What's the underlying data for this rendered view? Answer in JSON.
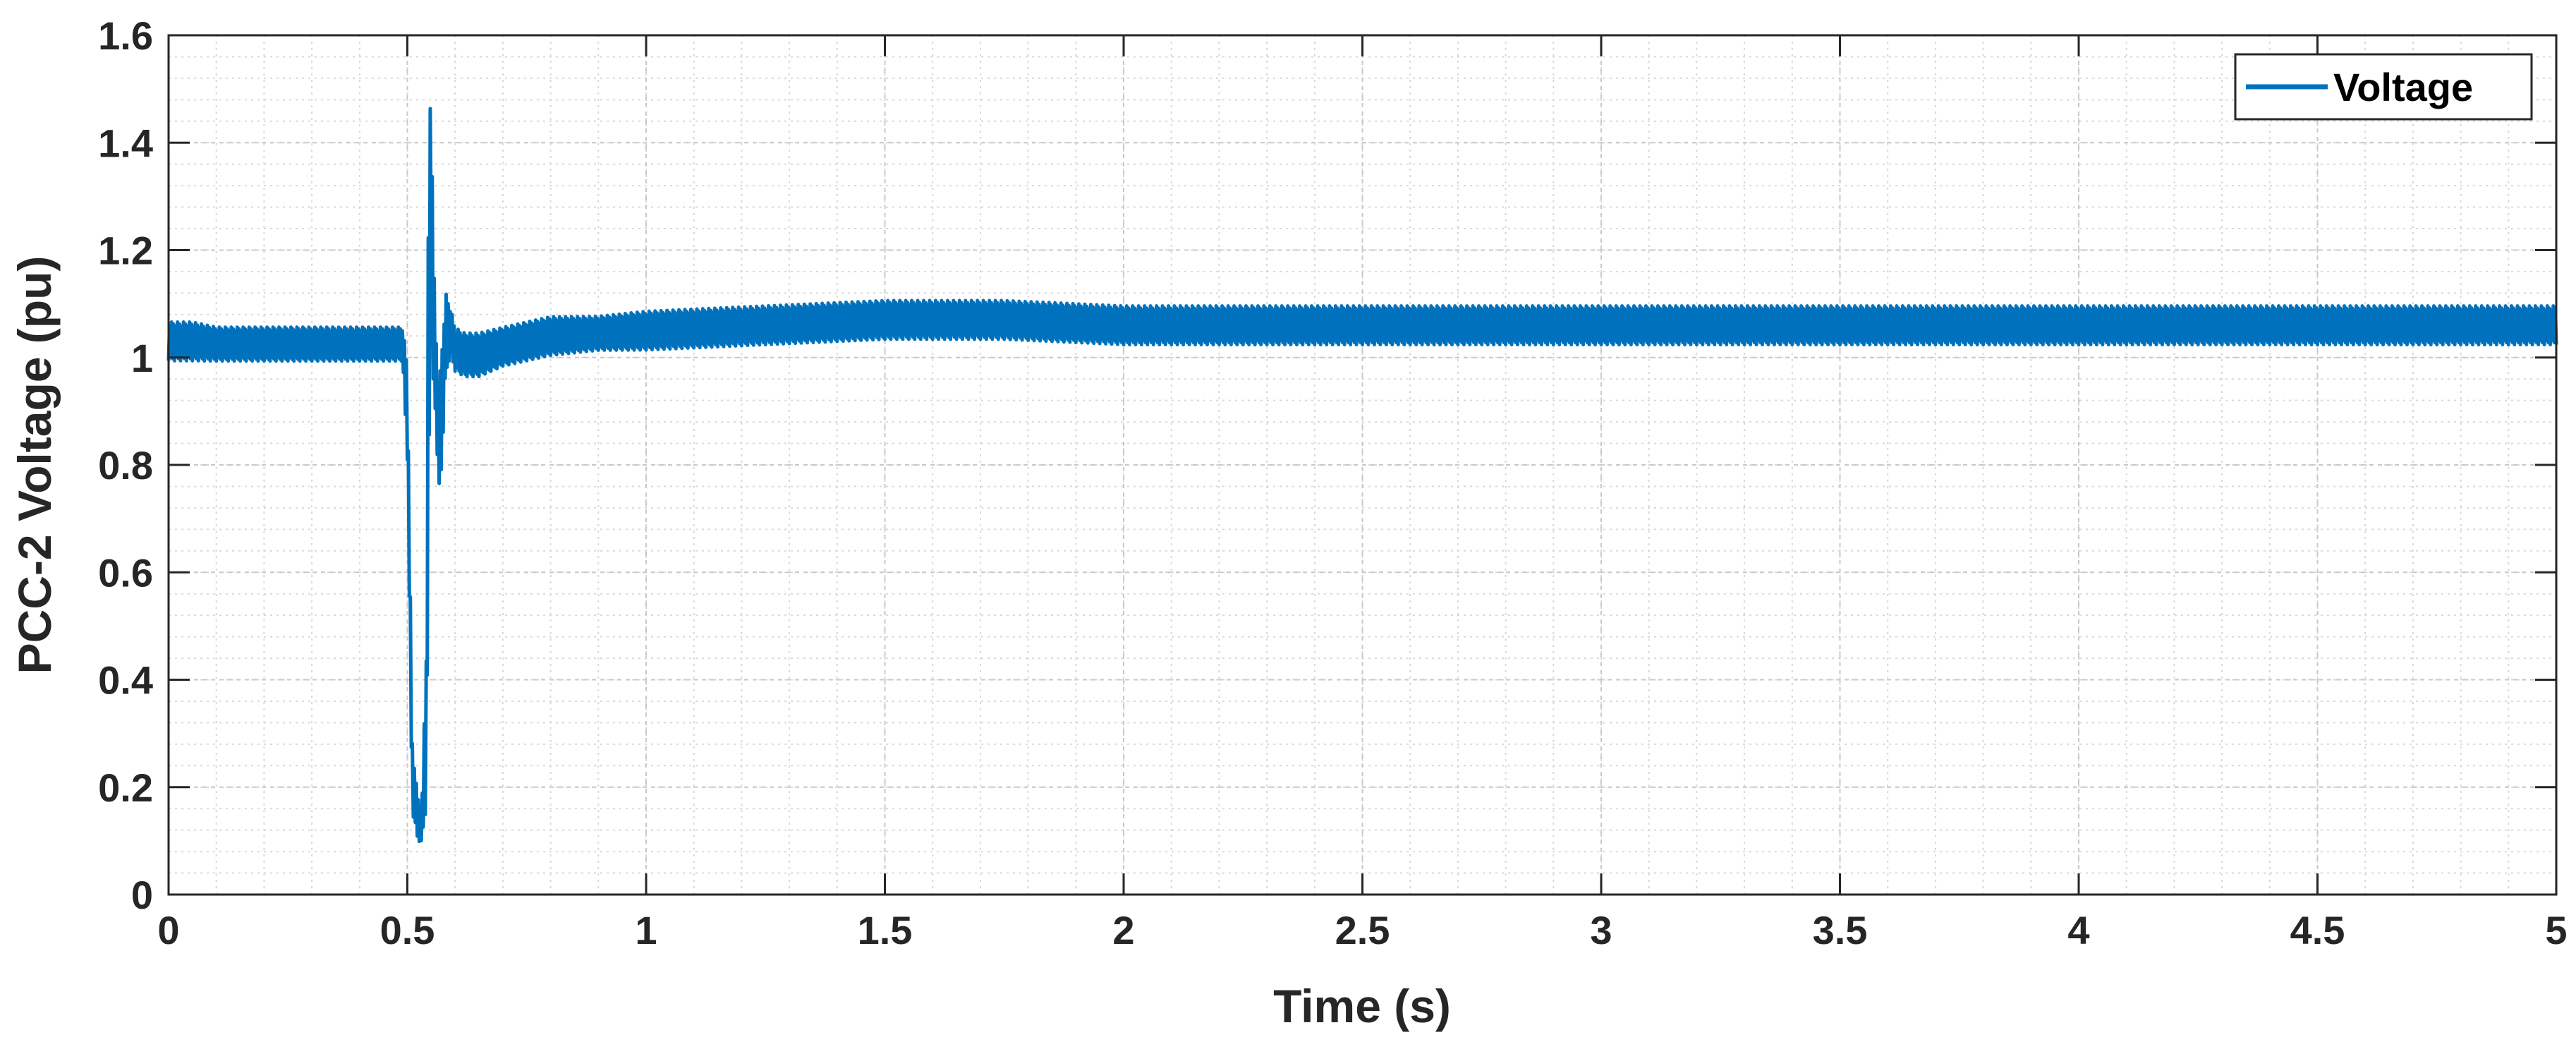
{
  "chart_data": {
    "type": "line",
    "title": "",
    "xlabel": "Time (s)",
    "ylabel": "PCC-2 Voltage (pu)",
    "xlim": [
      0,
      5
    ],
    "ylim": [
      0,
      1.6
    ],
    "x_ticks": [
      "0",
      "0.5",
      "1",
      "1.5",
      "2",
      "2.5",
      "3",
      "3.5",
      "4",
      "4.5",
      "5"
    ],
    "y_ticks": [
      "0",
      "0.2",
      "0.4",
      "0.6",
      "0.8",
      "1",
      "1.2",
      "1.4",
      "1.6"
    ],
    "grid": true,
    "minor_grid": true,
    "legend": {
      "position": "top-right",
      "entries": [
        "Voltage"
      ]
    },
    "series": [
      {
        "name": "Voltage",
        "color": "#0072BD",
        "x": [
          0.0,
          0.05,
          0.1,
          0.2,
          0.3,
          0.4,
          0.49,
          0.5,
          0.51,
          0.52,
          0.53,
          0.54,
          0.545,
          0.55,
          0.555,
          0.56,
          0.565,
          0.57,
          0.58,
          0.59,
          0.6,
          0.62,
          0.65,
          0.7,
          0.8,
          0.9,
          1.0,
          1.25,
          1.5,
          1.75,
          2.0,
          2.25,
          2.5,
          3.0,
          3.5,
          4.0,
          4.5,
          5.0
        ],
        "lower": [
          0.99,
          0.99,
          0.99,
          0.99,
          0.99,
          0.99,
          0.99,
          0.8,
          0.15,
          0.1,
          0.09,
          0.15,
          0.7,
          1.2,
          0.85,
          0.9,
          0.72,
          0.75,
          0.95,
          1.0,
          0.97,
          0.96,
          0.96,
          0.98,
          1.0,
          1.01,
          1.01,
          1.02,
          1.03,
          1.03,
          1.02,
          1.02,
          1.02,
          1.02,
          1.02,
          1.02,
          1.02,
          1.02
        ],
        "upper": [
          1.07,
          1.07,
          1.06,
          1.06,
          1.06,
          1.06,
          1.06,
          1.0,
          0.3,
          0.2,
          0.15,
          0.5,
          1.51,
          1.52,
          1.2,
          1.05,
          0.95,
          1.0,
          1.13,
          1.1,
          1.06,
          1.05,
          1.05,
          1.06,
          1.08,
          1.08,
          1.09,
          1.1,
          1.11,
          1.11,
          1.1,
          1.1,
          1.1,
          1.1,
          1.1,
          1.1,
          1.1,
          1.1
        ]
      }
    ]
  }
}
